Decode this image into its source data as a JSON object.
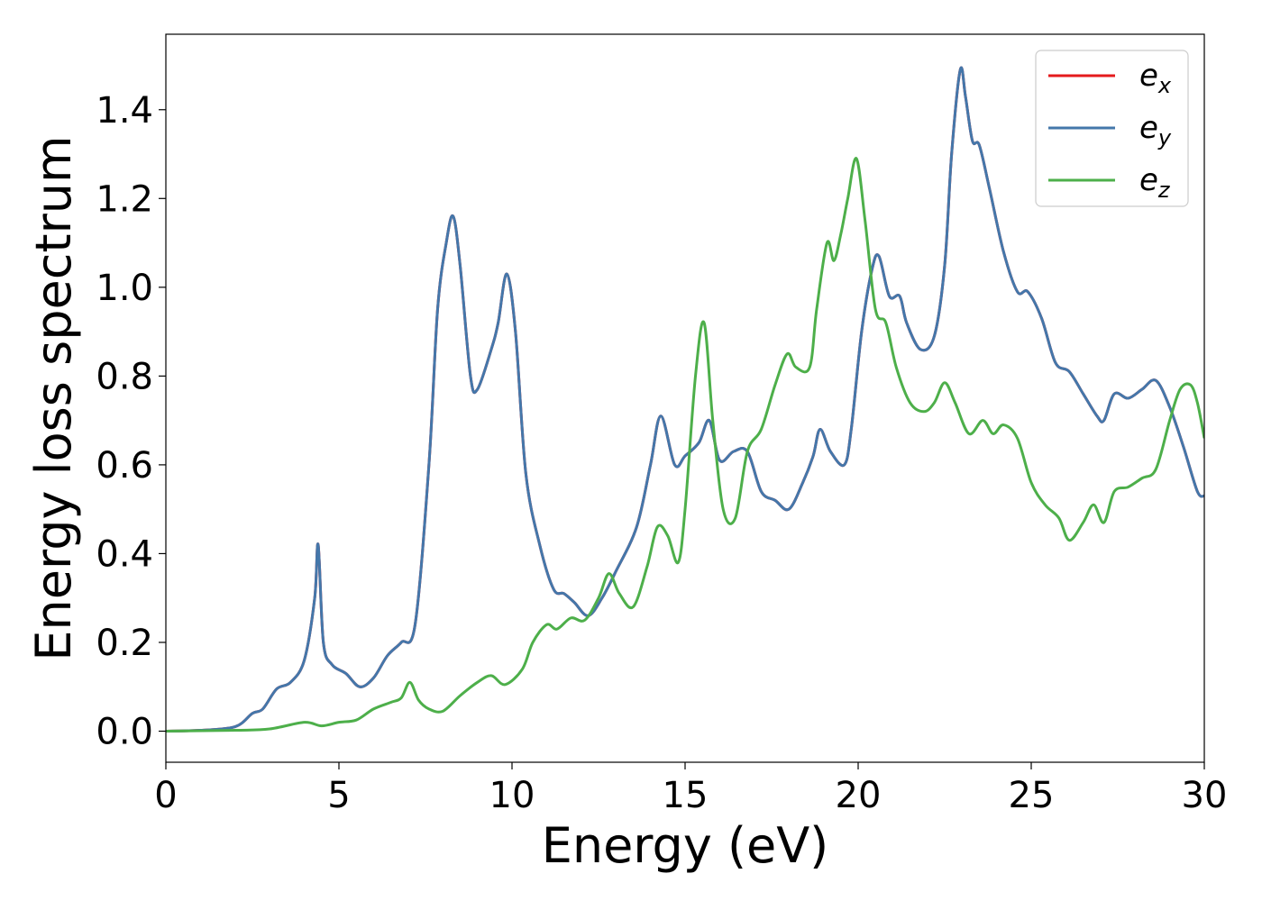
{
  "chart_data": {
    "type": "line",
    "title": "",
    "xlabel": "Energy (eV)",
    "ylabel": "Energy loss spectrum",
    "xlim": [
      0,
      30
    ],
    "ylim": [
      -0.07,
      1.57
    ],
    "xticks": [
      0,
      5,
      10,
      15,
      20,
      25,
      30
    ],
    "yticks": [
      0.0,
      0.2,
      0.4,
      0.6,
      0.8,
      1.0,
      1.2,
      1.4
    ],
    "ytick_labels": [
      "0.0",
      "0.2",
      "0.4",
      "0.6",
      "0.8",
      "1.0",
      "1.2",
      "1.4"
    ],
    "grid": false,
    "legend_position": "top-right",
    "series": [
      {
        "name": "e_x",
        "label_main": "e",
        "label_sub": "x",
        "color": "#e41a1c",
        "x": [
          0,
          1,
          2,
          2.5,
          2.8,
          3.2,
          3.6,
          4.0,
          4.3,
          4.4,
          4.55,
          4.8,
          5.2,
          5.6,
          6.0,
          6.4,
          6.8,
          7.2,
          7.6,
          7.85,
          8.1,
          8.3,
          8.5,
          8.8,
          9.0,
          9.4,
          9.6,
          9.85,
          10.1,
          10.4,
          10.8,
          11.2,
          11.5,
          11.8,
          12.2,
          12.6,
          13.0,
          13.6,
          14.0,
          14.3,
          14.7,
          15.0,
          15.4,
          15.7,
          16.0,
          16.4,
          16.8,
          17.2,
          17.6,
          18.0,
          18.4,
          18.7,
          18.9,
          19.2,
          19.6,
          19.8,
          20.1,
          20.4,
          20.6,
          20.9,
          21.2,
          21.4,
          21.8,
          22.2,
          22.5,
          22.7,
          22.95,
          23.1,
          23.3,
          23.5,
          23.8,
          24.2,
          24.6,
          24.9,
          25.3,
          25.7,
          26.1,
          26.5,
          26.9,
          27.1,
          27.4,
          27.8,
          28.2,
          28.6,
          29.0,
          29.4,
          29.8,
          30.0
        ],
        "y": [
          0.0,
          0.002,
          0.01,
          0.04,
          0.05,
          0.095,
          0.11,
          0.16,
          0.3,
          0.42,
          0.2,
          0.15,
          0.13,
          0.1,
          0.12,
          0.17,
          0.2,
          0.24,
          0.6,
          0.95,
          1.1,
          1.16,
          1.05,
          0.8,
          0.77,
          0.86,
          0.92,
          1.03,
          0.9,
          0.58,
          0.42,
          0.32,
          0.31,
          0.29,
          0.26,
          0.3,
          0.36,
          0.46,
          0.6,
          0.71,
          0.6,
          0.62,
          0.65,
          0.7,
          0.61,
          0.63,
          0.63,
          0.54,
          0.52,
          0.5,
          0.56,
          0.62,
          0.68,
          0.63,
          0.6,
          0.68,
          0.9,
          1.04,
          1.07,
          0.98,
          0.98,
          0.92,
          0.86,
          0.89,
          1.05,
          1.3,
          1.49,
          1.43,
          1.33,
          1.32,
          1.22,
          1.08,
          0.99,
          0.99,
          0.93,
          0.83,
          0.81,
          0.76,
          0.71,
          0.7,
          0.76,
          0.75,
          0.77,
          0.79,
          0.73,
          0.64,
          0.54,
          0.53
        ]
      },
      {
        "name": "e_y",
        "label_main": "e",
        "label_sub": "y",
        "color": "#4477aa",
        "x": [
          0,
          1,
          2,
          2.5,
          2.8,
          3.2,
          3.6,
          4.0,
          4.3,
          4.4,
          4.55,
          4.8,
          5.2,
          5.6,
          6.0,
          6.4,
          6.8,
          7.2,
          7.6,
          7.85,
          8.1,
          8.3,
          8.5,
          8.8,
          9.0,
          9.4,
          9.6,
          9.85,
          10.1,
          10.4,
          10.8,
          11.2,
          11.5,
          11.8,
          12.2,
          12.6,
          13.0,
          13.6,
          14.0,
          14.3,
          14.7,
          15.0,
          15.4,
          15.7,
          16.0,
          16.4,
          16.8,
          17.2,
          17.6,
          18.0,
          18.4,
          18.7,
          18.9,
          19.2,
          19.6,
          19.8,
          20.1,
          20.4,
          20.6,
          20.9,
          21.2,
          21.4,
          21.8,
          22.2,
          22.5,
          22.7,
          22.95,
          23.1,
          23.3,
          23.5,
          23.8,
          24.2,
          24.6,
          24.9,
          25.3,
          25.7,
          26.1,
          26.5,
          26.9,
          27.1,
          27.4,
          27.8,
          28.2,
          28.6,
          29.0,
          29.4,
          29.8,
          30.0
        ],
        "y": [
          0.0,
          0.002,
          0.01,
          0.04,
          0.05,
          0.095,
          0.11,
          0.16,
          0.3,
          0.42,
          0.2,
          0.15,
          0.13,
          0.1,
          0.12,
          0.17,
          0.2,
          0.24,
          0.6,
          0.95,
          1.1,
          1.16,
          1.05,
          0.8,
          0.77,
          0.86,
          0.92,
          1.03,
          0.9,
          0.58,
          0.42,
          0.32,
          0.31,
          0.29,
          0.26,
          0.3,
          0.36,
          0.46,
          0.6,
          0.71,
          0.6,
          0.62,
          0.65,
          0.7,
          0.61,
          0.63,
          0.63,
          0.54,
          0.52,
          0.5,
          0.56,
          0.62,
          0.68,
          0.63,
          0.6,
          0.68,
          0.9,
          1.04,
          1.07,
          0.98,
          0.98,
          0.92,
          0.86,
          0.89,
          1.05,
          1.3,
          1.49,
          1.43,
          1.33,
          1.32,
          1.22,
          1.08,
          0.99,
          0.99,
          0.93,
          0.83,
          0.81,
          0.76,
          0.71,
          0.7,
          0.76,
          0.75,
          0.77,
          0.79,
          0.73,
          0.64,
          0.54,
          0.53
        ]
      },
      {
        "name": "e_z",
        "label_main": "e",
        "label_sub": "z",
        "color": "#4daf4a",
        "x": [
          0,
          2,
          3,
          4,
          4.5,
          5.0,
          5.5,
          6.0,
          6.5,
          6.8,
          7.05,
          7.3,
          7.6,
          8.0,
          8.5,
          9.0,
          9.4,
          9.8,
          10.3,
          10.6,
          11.0,
          11.3,
          11.7,
          12.1,
          12.5,
          12.8,
          13.1,
          13.5,
          13.9,
          14.2,
          14.5,
          14.8,
          15.0,
          15.3,
          15.55,
          15.8,
          16.1,
          16.45,
          16.8,
          17.2,
          17.6,
          17.95,
          18.2,
          18.6,
          18.8,
          19.1,
          19.3,
          19.5,
          19.7,
          19.95,
          20.2,
          20.5,
          20.8,
          21.1,
          21.5,
          21.9,
          22.2,
          22.5,
          22.8,
          23.2,
          23.6,
          23.9,
          24.2,
          24.6,
          25.0,
          25.4,
          25.8,
          26.1,
          26.5,
          26.8,
          27.1,
          27.4,
          27.8,
          28.2,
          28.6,
          29.0,
          29.3,
          29.6,
          29.8,
          30.0
        ],
        "y": [
          0.0,
          0.002,
          0.005,
          0.02,
          0.012,
          0.02,
          0.025,
          0.05,
          0.065,
          0.075,
          0.11,
          0.07,
          0.05,
          0.045,
          0.08,
          0.11,
          0.125,
          0.105,
          0.14,
          0.2,
          0.24,
          0.23,
          0.255,
          0.25,
          0.3,
          0.355,
          0.31,
          0.28,
          0.37,
          0.46,
          0.44,
          0.38,
          0.5,
          0.8,
          0.92,
          0.7,
          0.5,
          0.48,
          0.63,
          0.68,
          0.78,
          0.85,
          0.82,
          0.82,
          0.95,
          1.1,
          1.06,
          1.12,
          1.2,
          1.29,
          1.15,
          0.95,
          0.92,
          0.82,
          0.74,
          0.72,
          0.74,
          0.785,
          0.74,
          0.67,
          0.7,
          0.67,
          0.69,
          0.66,
          0.56,
          0.51,
          0.48,
          0.43,
          0.47,
          0.51,
          0.47,
          0.54,
          0.55,
          0.57,
          0.59,
          0.7,
          0.77,
          0.78,
          0.74,
          0.66
        ]
      }
    ]
  }
}
